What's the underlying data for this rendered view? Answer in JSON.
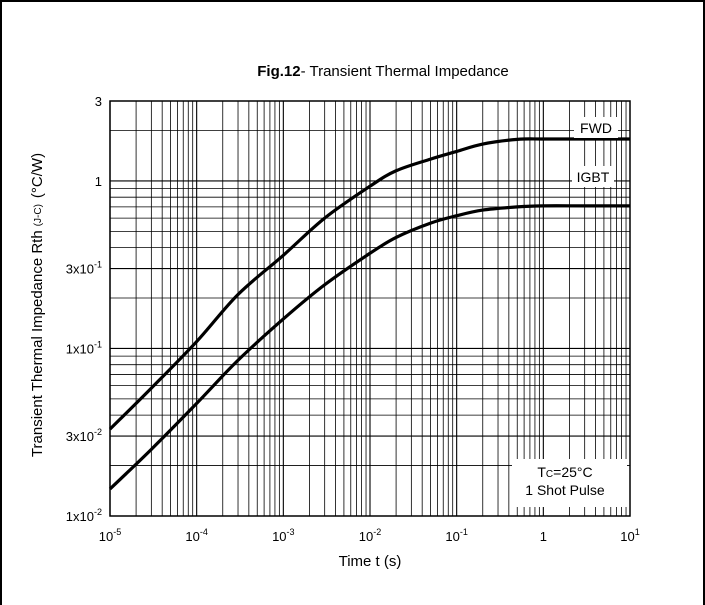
{
  "chart_data": {
    "type": "line",
    "title_bold": "Fig.12",
    "title_rest": "- Transient Thermal Impedance",
    "xlabel": "Time t (s)",
    "ylabel_main": "Transient Thermal Impedance  Rth",
    "ylabel_sub": "(J-C)",
    "ylabel_unit": "(°C/W)",
    "x_scale": "log",
    "y_scale": "log",
    "xlim": [
      1e-05,
      10
    ],
    "ylim": [
      0.01,
      3
    ],
    "grid": true,
    "x_ticks": [
      {
        "value": 1e-05,
        "base": "10",
        "exp": "-5"
      },
      {
        "value": 0.0001,
        "base": "10",
        "exp": "-4"
      },
      {
        "value": 0.001,
        "base": "10",
        "exp": "-3"
      },
      {
        "value": 0.01,
        "base": "10",
        "exp": "-2"
      },
      {
        "value": 0.1,
        "base": "10",
        "exp": "-1"
      },
      {
        "value": 1,
        "base": "1",
        "exp": ""
      },
      {
        "value": 10,
        "base": "10",
        "exp": "1"
      }
    ],
    "y_ticks": [
      {
        "value": 3,
        "base": "3",
        "exp": ""
      },
      {
        "value": 1,
        "base": "1",
        "exp": ""
      },
      {
        "value": 0.3,
        "base": "3x10",
        "exp": "-1"
      },
      {
        "value": 0.1,
        "base": "1x10",
        "exp": "-1"
      },
      {
        "value": 0.03,
        "base": "3x10",
        "exp": "-2"
      },
      {
        "value": 0.01,
        "base": "1x10",
        "exp": "-2"
      }
    ],
    "series": [
      {
        "name": "FWD",
        "x": [
          1e-05,
          3e-05,
          0.0001,
          0.0003,
          0.001,
          0.003,
          0.01,
          0.02,
          0.05,
          0.1,
          0.2,
          0.5,
          1,
          3,
          10
        ],
        "y": [
          0.033,
          0.058,
          0.11,
          0.21,
          0.36,
          0.6,
          0.93,
          1.15,
          1.35,
          1.5,
          1.66,
          1.77,
          1.78,
          1.78,
          1.78
        ]
      },
      {
        "name": "IGBT",
        "x": [
          1e-05,
          3e-05,
          0.0001,
          0.0003,
          0.001,
          0.003,
          0.01,
          0.02,
          0.05,
          0.1,
          0.2,
          0.5,
          1,
          3,
          10
        ],
        "y": [
          0.0145,
          0.025,
          0.047,
          0.085,
          0.15,
          0.24,
          0.37,
          0.46,
          0.56,
          0.62,
          0.67,
          0.7,
          0.71,
          0.71,
          0.71
        ]
      }
    ],
    "annotation_line1_main": "T",
    "annotation_line1_sub": "C",
    "annotation_line1_rest": "=25°C",
    "annotation_line2": "1 Shot Pulse"
  }
}
